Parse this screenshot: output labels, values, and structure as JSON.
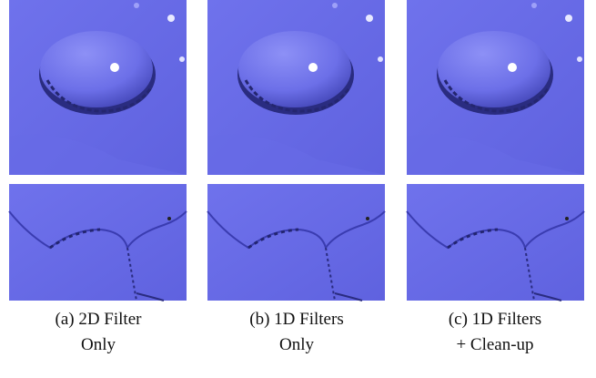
{
  "figure": {
    "captions": [
      {
        "lines": [
          "(a) 2D Filter",
          "Only"
        ]
      },
      {
        "lines": [
          "(b) 1D Filters",
          "Only"
        ]
      },
      {
        "lines": [
          "(c) 1D Filters",
          "+ Clean-up"
        ]
      }
    ]
  }
}
